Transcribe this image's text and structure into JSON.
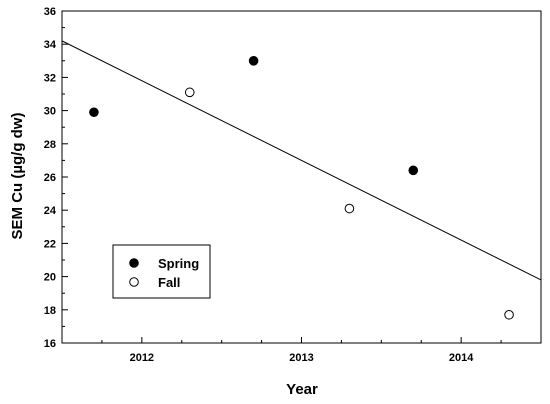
{
  "chart_data": {
    "type": "scatter",
    "title": "",
    "xlabel": "Year",
    "ylabel": "SEM Cu (µg/g dw)",
    "xlim": [
      2011.5,
      2014.5
    ],
    "ylim": [
      16,
      36
    ],
    "x_ticks": [
      2012,
      2013,
      2014
    ],
    "x_tick_labels": [
      "2012",
      "2013",
      "2014"
    ],
    "y_ticks": [
      16,
      18,
      20,
      22,
      24,
      26,
      28,
      30,
      32,
      34,
      36
    ],
    "y_tick_labels": [
      "16",
      "18",
      "20",
      "22",
      "24",
      "26",
      "28",
      "30",
      "32",
      "34",
      "36"
    ],
    "grid": false,
    "legend": {
      "position": "lower-left"
    },
    "series": [
      {
        "name": "Spring",
        "marker": "filled-circle",
        "color": "#000000",
        "x": [
          2011.7,
          2012.7,
          2013.7
        ],
        "y": [
          29.9,
          33.0,
          26.4
        ]
      },
      {
        "name": "Fall",
        "marker": "open-circle",
        "color": "#000000",
        "x": [
          2012.3,
          2013.3,
          2014.3
        ],
        "y": [
          31.1,
          24.1,
          17.7
        ]
      }
    ],
    "trendline": {
      "type": "linear",
      "x": [
        2011.5,
        2014.5
      ],
      "y": [
        34.2,
        19.8
      ]
    }
  }
}
